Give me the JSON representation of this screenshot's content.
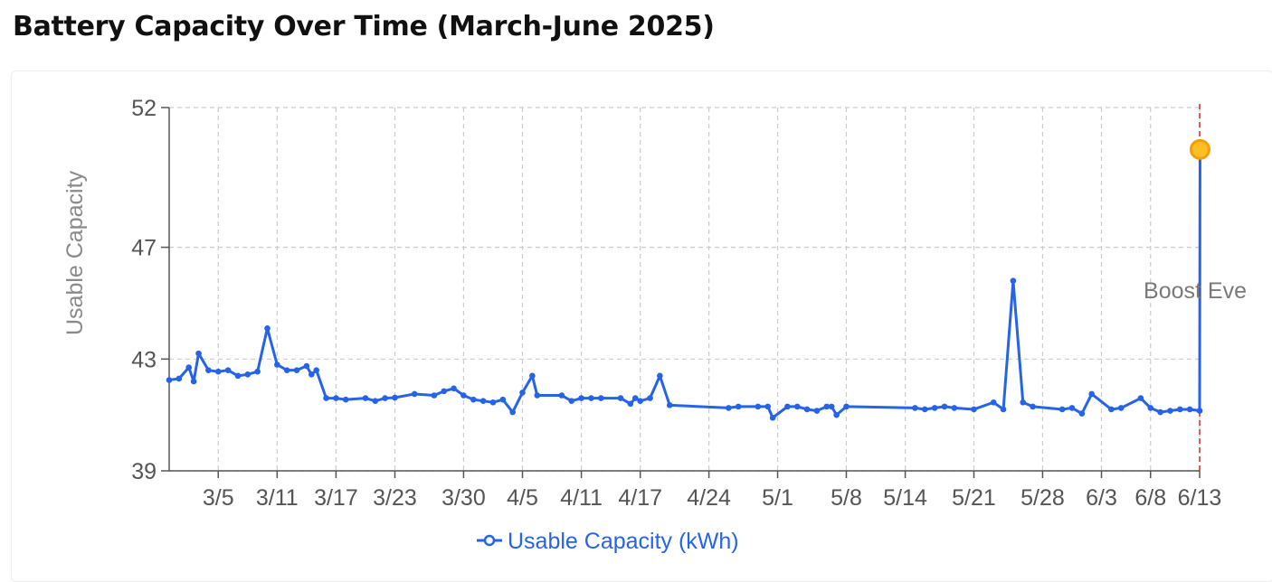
{
  "title": "Battery Capacity Over Time (March-June 2025)",
  "colors": {
    "series": "#2563eb",
    "highlight": "#f59e0b",
    "highlight_stroke": "#fbbf24",
    "event_line": "#dc2626",
    "grid": "#cccccc",
    "axis": "#555555"
  },
  "chart_data": {
    "type": "line",
    "ylabel": "Usable Capacity",
    "ylim": [
      39,
      52
    ],
    "yticks": [
      39,
      43,
      47,
      52
    ],
    "xlim": [
      "2025-02-28",
      "2025-06-13"
    ],
    "xticks": [
      {
        "date": "2025-03-05",
        "label": "3/5"
      },
      {
        "date": "2025-03-11",
        "label": "3/11"
      },
      {
        "date": "2025-03-17",
        "label": "3/17"
      },
      {
        "date": "2025-03-23",
        "label": "3/23"
      },
      {
        "date": "2025-03-30",
        "label": "3/30"
      },
      {
        "date": "2025-04-05",
        "label": "4/5"
      },
      {
        "date": "2025-04-11",
        "label": "4/11"
      },
      {
        "date": "2025-04-17",
        "label": "4/17"
      },
      {
        "date": "2025-04-24",
        "label": "4/24"
      },
      {
        "date": "2025-05-01",
        "label": "5/1"
      },
      {
        "date": "2025-05-08",
        "label": "5/8"
      },
      {
        "date": "2025-05-14",
        "label": "5/14"
      },
      {
        "date": "2025-05-21",
        "label": "5/21"
      },
      {
        "date": "2025-05-28",
        "label": "5/28"
      },
      {
        "date": "2025-06-03",
        "label": "6/3"
      },
      {
        "date": "2025-06-08",
        "label": "6/8"
      },
      {
        "date": "2025-06-13",
        "label": "6/13"
      }
    ],
    "grid": true,
    "legend_position": "bottom-center",
    "series": [
      {
        "name": "Usable Capacity (kWh)",
        "points": [
          {
            "x": "2025-02-28",
            "y": 42.25
          },
          {
            "x": "2025-03-01",
            "y": 42.3
          },
          {
            "x": "2025-03-02",
            "y": 42.7
          },
          {
            "x": "2025-03-02T12:00",
            "y": 42.2
          },
          {
            "x": "2025-03-03",
            "y": 43.2
          },
          {
            "x": "2025-03-04",
            "y": 42.6
          },
          {
            "x": "2025-03-05",
            "y": 42.55
          },
          {
            "x": "2025-03-06",
            "y": 42.6
          },
          {
            "x": "2025-03-07",
            "y": 42.4
          },
          {
            "x": "2025-03-08",
            "y": 42.45
          },
          {
            "x": "2025-03-09",
            "y": 42.55
          },
          {
            "x": "2025-03-10",
            "y": 44.1
          },
          {
            "x": "2025-03-11",
            "y": 42.8
          },
          {
            "x": "2025-03-12",
            "y": 42.6
          },
          {
            "x": "2025-03-13",
            "y": 42.6
          },
          {
            "x": "2025-03-14",
            "y": 42.75
          },
          {
            "x": "2025-03-14T12:00",
            "y": 42.45
          },
          {
            "x": "2025-03-15",
            "y": 42.6
          },
          {
            "x": "2025-03-16",
            "y": 41.6
          },
          {
            "x": "2025-03-17",
            "y": 41.6
          },
          {
            "x": "2025-03-18",
            "y": 41.55
          },
          {
            "x": "2025-03-20",
            "y": 41.6
          },
          {
            "x": "2025-03-21",
            "y": 41.5
          },
          {
            "x": "2025-03-22",
            "y": 41.6
          },
          {
            "x": "2025-03-23",
            "y": 41.62
          },
          {
            "x": "2025-03-25",
            "y": 41.75
          },
          {
            "x": "2025-03-27",
            "y": 41.7
          },
          {
            "x": "2025-03-28",
            "y": 41.85
          },
          {
            "x": "2025-03-29",
            "y": 41.95
          },
          {
            "x": "2025-03-30",
            "y": 41.7
          },
          {
            "x": "2025-03-31",
            "y": 41.55
          },
          {
            "x": "2025-04-01",
            "y": 41.5
          },
          {
            "x": "2025-04-02",
            "y": 41.45
          },
          {
            "x": "2025-04-03",
            "y": 41.55
          },
          {
            "x": "2025-04-04",
            "y": 41.1
          },
          {
            "x": "2025-04-05",
            "y": 41.8
          },
          {
            "x": "2025-04-06",
            "y": 42.4
          },
          {
            "x": "2025-04-06T12:00",
            "y": 41.7
          },
          {
            "x": "2025-04-09",
            "y": 41.7
          },
          {
            "x": "2025-04-10",
            "y": 41.5
          },
          {
            "x": "2025-04-11",
            "y": 41.6
          },
          {
            "x": "2025-04-12",
            "y": 41.6
          },
          {
            "x": "2025-04-13",
            "y": 41.6
          },
          {
            "x": "2025-04-15",
            "y": 41.6
          },
          {
            "x": "2025-04-16",
            "y": 41.4
          },
          {
            "x": "2025-04-16T12:00",
            "y": 41.6
          },
          {
            "x": "2025-04-17",
            "y": 41.5
          },
          {
            "x": "2025-04-18",
            "y": 41.6
          },
          {
            "x": "2025-04-19",
            "y": 42.4
          },
          {
            "x": "2025-04-20",
            "y": 41.35
          },
          {
            "x": "2025-04-26",
            "y": 41.25
          },
          {
            "x": "2025-04-27",
            "y": 41.3
          },
          {
            "x": "2025-04-29",
            "y": 41.3
          },
          {
            "x": "2025-04-30",
            "y": 41.3
          },
          {
            "x": "2025-04-30T12:00",
            "y": 40.9
          },
          {
            "x": "2025-05-02",
            "y": 41.3
          },
          {
            "x": "2025-05-03",
            "y": 41.3
          },
          {
            "x": "2025-05-04",
            "y": 41.2
          },
          {
            "x": "2025-05-05",
            "y": 41.15
          },
          {
            "x": "2025-05-06",
            "y": 41.3
          },
          {
            "x": "2025-05-06T12:00",
            "y": 41.3
          },
          {
            "x": "2025-05-07",
            "y": 41.0
          },
          {
            "x": "2025-05-08",
            "y": 41.3
          },
          {
            "x": "2025-05-15",
            "y": 41.25
          },
          {
            "x": "2025-05-16",
            "y": 41.2
          },
          {
            "x": "2025-05-17",
            "y": 41.25
          },
          {
            "x": "2025-05-18",
            "y": 41.3
          },
          {
            "x": "2025-05-19",
            "y": 41.25
          },
          {
            "x": "2025-05-21",
            "y": 41.2
          },
          {
            "x": "2025-05-23",
            "y": 41.45
          },
          {
            "x": "2025-05-24",
            "y": 41.2
          },
          {
            "x": "2025-05-25",
            "y": 45.8
          },
          {
            "x": "2025-05-26",
            "y": 41.45
          },
          {
            "x": "2025-05-27",
            "y": 41.3
          },
          {
            "x": "2025-05-30",
            "y": 41.2
          },
          {
            "x": "2025-05-31",
            "y": 41.25
          },
          {
            "x": "2025-06-01",
            "y": 41.05
          },
          {
            "x": "2025-06-02",
            "y": 41.75
          },
          {
            "x": "2025-06-04",
            "y": 41.2
          },
          {
            "x": "2025-06-05",
            "y": 41.25
          },
          {
            "x": "2025-06-07",
            "y": 41.6
          },
          {
            "x": "2025-06-08",
            "y": 41.25
          },
          {
            "x": "2025-06-09",
            "y": 41.1
          },
          {
            "x": "2025-06-10",
            "y": 41.15
          },
          {
            "x": "2025-06-11",
            "y": 41.2
          },
          {
            "x": "2025-06-12",
            "y": 41.2
          },
          {
            "x": "2025-06-13",
            "y": 41.15
          },
          {
            "x": "2025-06-13T01:00",
            "y": 50.5
          }
        ]
      }
    ],
    "highlight_point": {
      "x": "2025-06-13T01:00",
      "y": 50.5
    },
    "event_line": {
      "x": "2025-06-13",
      "label": "Boost Eve"
    }
  }
}
